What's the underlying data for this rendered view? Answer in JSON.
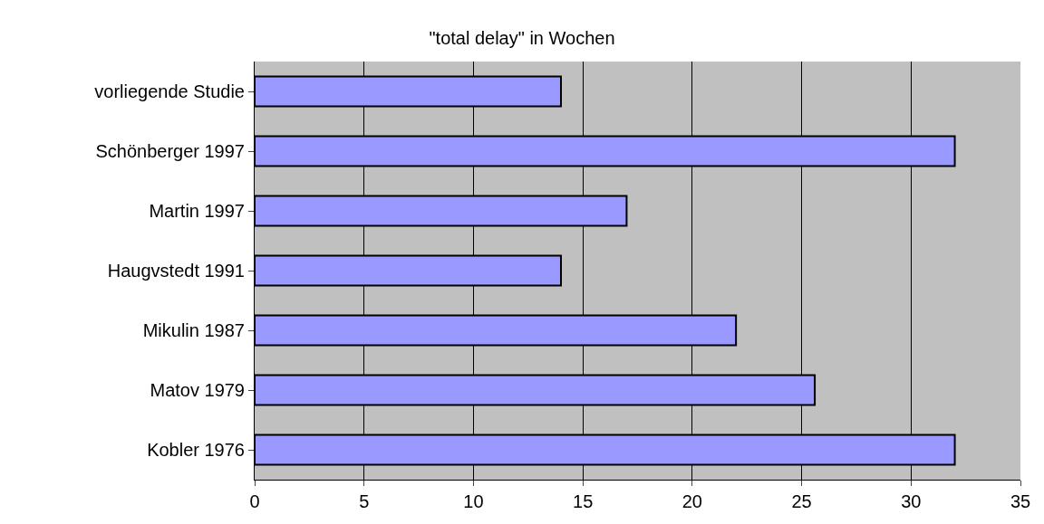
{
  "chart_data": {
    "type": "bar",
    "orientation": "horizontal",
    "title": "\"total delay\" in Wochen",
    "categories": [
      "vorliegende Studie",
      "Schönberger 1997",
      "Martin 1997",
      "Haugvstedt 1991",
      "Mikulin 1987",
      "Matov 1979",
      "Kobler 1976"
    ],
    "values": [
      14,
      32,
      17,
      14,
      22,
      25.6,
      32
    ],
    "color": "#9999ff",
    "xlim": [
      0,
      35
    ],
    "xticks": [
      0,
      5,
      10,
      15,
      20,
      25,
      30,
      35
    ],
    "grid": "x",
    "legend": false
  }
}
